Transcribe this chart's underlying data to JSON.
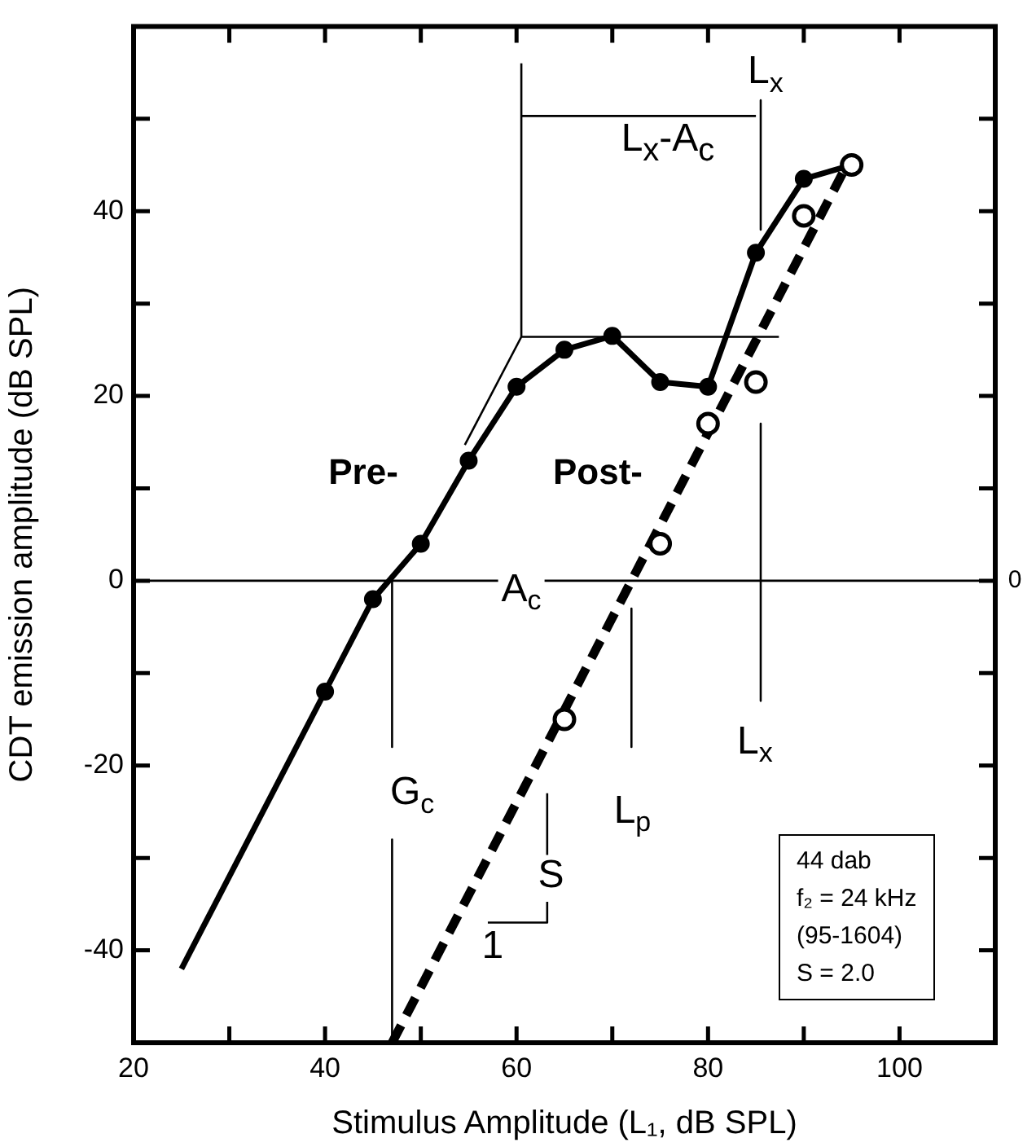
{
  "chart_data": {
    "type": "line",
    "xlabel": "Stimulus Amplitude (L₁, dB SPL)",
    "ylabel": "CDT emission amplitude (dB SPL)",
    "xlim": [
      20,
      110
    ],
    "ylim": [
      -50,
      60
    ],
    "xticks": [
      20,
      {
        "value": 30,
        "label": null
      },
      40,
      {
        "value": 50,
        "label": null
      },
      60,
      {
        "value": 70,
        "label": null
      },
      80,
      {
        "value": 90,
        "label": null
      },
      100,
      {
        "value": 110,
        "label": null
      }
    ],
    "yticks": [
      {
        "value": -50,
        "label": null
      },
      -40,
      {
        "value": -30,
        "label": null
      },
      -20,
      {
        "value": -10,
        "label": null
      },
      0,
      {
        "value": 10,
        "label": null
      },
      20,
      {
        "value": 30,
        "label": null
      },
      40,
      {
        "value": 50,
        "label": null
      },
      {
        "value": 60,
        "label": null
      }
    ],
    "grid": false,
    "legend": false,
    "series": [
      {
        "color": "#000000",
        "marker": "circle",
        "line_style": "solid",
        "x": [
          40,
          45,
          50,
          55,
          60,
          65,
          70,
          75,
          80,
          85,
          90,
          95
        ],
        "values": [
          -12,
          -2,
          4,
          13,
          21,
          25,
          26.5,
          21.5,
          21,
          35.5,
          43.5,
          45
        ]
      },
      {
        "color": "#000000",
        "marker": "none",
        "line_style": "solid",
        "x": [
          25,
          40
        ],
        "values": [
          -42,
          -12
        ]
      },
      {
        "color": "#000000",
        "marker": "none",
        "line_style": "dashed",
        "x": [
          47,
          95
        ],
        "values": [
          -50,
          46
        ]
      },
      {
        "type": "scatter",
        "color": "#000000",
        "marker": "circle",
        "x": [
          65,
          75,
          80,
          85,
          90,
          95
        ],
        "values": [
          -15,
          4,
          17,
          21.5,
          39.5,
          45
        ]
      },
      {
        "color": "#000000",
        "marker": "none",
        "x": [
          54.6,
          60.5,
          87.4
        ],
        "values": [
          14.7,
          26.4,
          26.4
        ]
      },
      {
        "color": "#000000",
        "marker": "none",
        "x": [
          60.5,
          60.5
        ],
        "values": [
          26.4,
          56
        ]
      },
      {
        "color": "#000000",
        "marker": "none",
        "x": [
          85,
          60.5
        ],
        "values": [
          50.3,
          50.3
        ]
      },
      {
        "color": "#000000",
        "marker": "none",
        "x": [
          85.5,
          85.5
        ],
        "values": [
          52,
          38
        ]
      },
      {
        "color": "#000000",
        "marker": "none",
        "x": [
          85.5,
          85.5
        ],
        "values": [
          17,
          -13
        ]
      },
      {
        "color": "#000000",
        "marker": "none",
        "x": [
          47,
          47
        ],
        "values": [
          0,
          -18
        ]
      },
      {
        "color": "#000000",
        "marker": "none",
        "x": [
          47,
          47
        ],
        "values": [
          -28,
          -50
        ]
      },
      {
        "color": "#000000",
        "marker": "none",
        "x": [
          72,
          72
        ],
        "values": [
          -3,
          -18
        ]
      },
      {
        "color": "#000000",
        "marker": "none",
        "x": [
          57,
          63.2,
          63.2
        ],
        "values": [
          -37,
          -37,
          -23
        ]
      }
    ],
    "ref_lines": [
      {
        "axis": "y",
        "value": 0,
        "label": "0",
        "color": "#000000"
      }
    ],
    "annotations": [
      {
        "text": "L$_{x}$",
        "x": 86,
        "y": 55
      },
      "L$_{x}$-A$_{c}$",
      "Pre-",
      "Post-",
      {
        "text": "A$_{c}$",
        "x": 60.5,
        "y": -1
      },
      {
        "text": "G$_{c}$",
        "x": 49.1,
        "y": -23
      },
      {
        "text": "L$_{p}$",
        "x": 72.1,
        "y": -25
      },
      {
        "text": "L$_{x}$",
        "x": 84.9,
        "y": -17.5
      },
      {
        "text": "S",
        "x": 63.6,
        "y": -32
      },
      {
        "text": "1",
        "x": 57.5,
        "y": -39.7
      },
      "44 dab",
      "f₂ = 24 kHz",
      "(95-1604)",
      "S = 2.0"
    ]
  }
}
